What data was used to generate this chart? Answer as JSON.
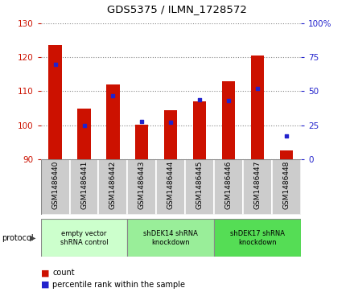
{
  "title": "GDS5375 / ILMN_1728572",
  "samples": [
    "GSM1486440",
    "GSM1486441",
    "GSM1486442",
    "GSM1486443",
    "GSM1486444",
    "GSM1486445",
    "GSM1486446",
    "GSM1486447",
    "GSM1486448"
  ],
  "counts": [
    123.5,
    105.0,
    112.0,
    100.2,
    104.5,
    107.0,
    113.0,
    120.5,
    92.5
  ],
  "percentiles": [
    70,
    25,
    47,
    28,
    27,
    44,
    43,
    52,
    17
  ],
  "ylim_left": [
    90,
    130
  ],
  "ylim_right": [
    0,
    100
  ],
  "yticks_left": [
    90,
    100,
    110,
    120,
    130
  ],
  "yticks_right": [
    0,
    25,
    50,
    75,
    100
  ],
  "yticklabels_right": [
    "0",
    "25",
    "50",
    "75",
    "100%"
  ],
  "bar_color": "#cc1100",
  "dot_color": "#2222cc",
  "bar_bottom": 90,
  "groups": [
    {
      "label": "empty vector\nshRNA control",
      "start": 0,
      "end": 3,
      "color": "#ccffcc"
    },
    {
      "label": "shDEK14 shRNA\nknockdown",
      "start": 3,
      "end": 6,
      "color": "#99ee99"
    },
    {
      "label": "shDEK17 shRNA\nknockdown",
      "start": 6,
      "end": 9,
      "color": "#55dd55"
    }
  ],
  "legend_count_color": "#cc1100",
  "legend_dot_color": "#2222cc",
  "left_tick_color": "#cc1100",
  "right_tick_color": "#2222cc",
  "grid_color": "#888888",
  "tick_area_bg": "#cccccc",
  "protocol_label": "protocol"
}
